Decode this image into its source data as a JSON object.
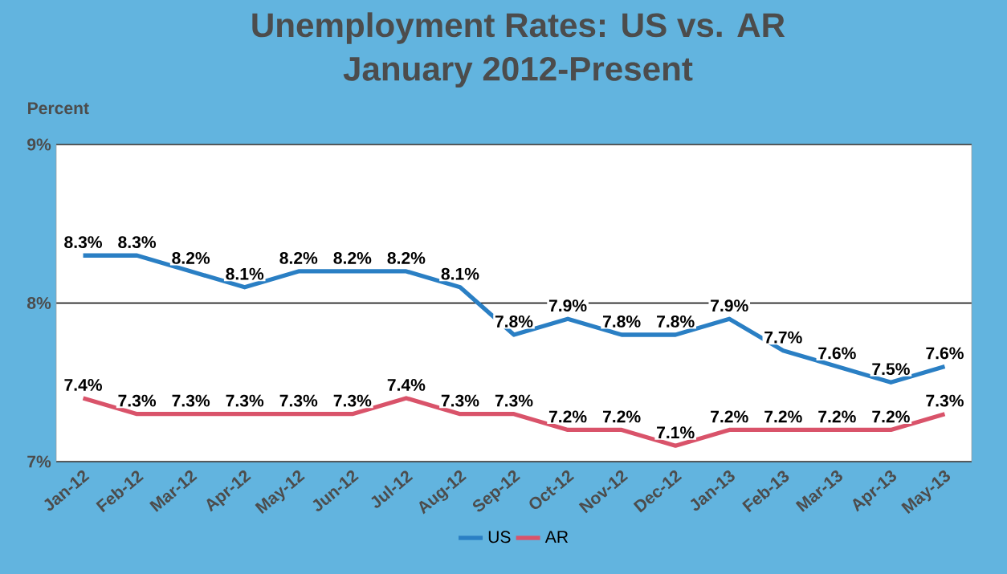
{
  "chart_data": {
    "type": "line",
    "title": "Unemployment Rates: US vs. AR",
    "subtitle": "January 2012-Present",
    "ylabel": "Percent",
    "categories": [
      "Jan-12",
      "Feb-12",
      "Mar-12",
      "Apr-12",
      "May-12",
      "Jun-12",
      "Jul-12",
      "Aug-12",
      "Sep-12",
      "Oct-12",
      "Nov-12",
      "Dec-12",
      "Jan-13",
      "Feb-13",
      "Mar-13",
      "Apr-13",
      "May-13"
    ],
    "series": [
      {
        "name": "US",
        "color": "#2a7fc4",
        "values": [
          8.3,
          8.3,
          8.2,
          8.1,
          8.2,
          8.2,
          8.2,
          8.1,
          7.8,
          7.9,
          7.8,
          7.8,
          7.9,
          7.7,
          7.6,
          7.5,
          7.6
        ],
        "value_labels": [
          "8.3%",
          "8.3%",
          "8.2%",
          "8.1%",
          "8.2%",
          "8.2%",
          "8.2%",
          "8.1%",
          "7.8%",
          "7.9%",
          "7.8%",
          "7.8%",
          "7.9%",
          "7.7%",
          "7.6%",
          "7.5%",
          "7.6%"
        ]
      },
      {
        "name": "AR",
        "color": "#d9536a",
        "values": [
          7.4,
          7.3,
          7.3,
          7.3,
          7.3,
          7.3,
          7.4,
          7.3,
          7.3,
          7.2,
          7.2,
          7.1,
          7.2,
          7.2,
          7.2,
          7.2,
          7.3
        ],
        "value_labels": [
          "7.4%",
          "7.3%",
          "7.3%",
          "7.3%",
          "7.3%",
          "7.3%",
          "7.4%",
          "7.3%",
          "7.3%",
          "7.2%",
          "7.2%",
          "7.1%",
          "7.2%",
          "7.2%",
          "7.2%",
          "7.2%",
          "7.3%"
        ]
      }
    ],
    "ylim": [
      7,
      9
    ],
    "yticks": [
      {
        "value": 7,
        "label": "7%"
      },
      {
        "value": 8,
        "label": "8%"
      },
      {
        "value": 9,
        "label": "9%"
      }
    ],
    "grid": "y",
    "legend": "bottom",
    "marker": "none",
    "line_style": "solid"
  }
}
